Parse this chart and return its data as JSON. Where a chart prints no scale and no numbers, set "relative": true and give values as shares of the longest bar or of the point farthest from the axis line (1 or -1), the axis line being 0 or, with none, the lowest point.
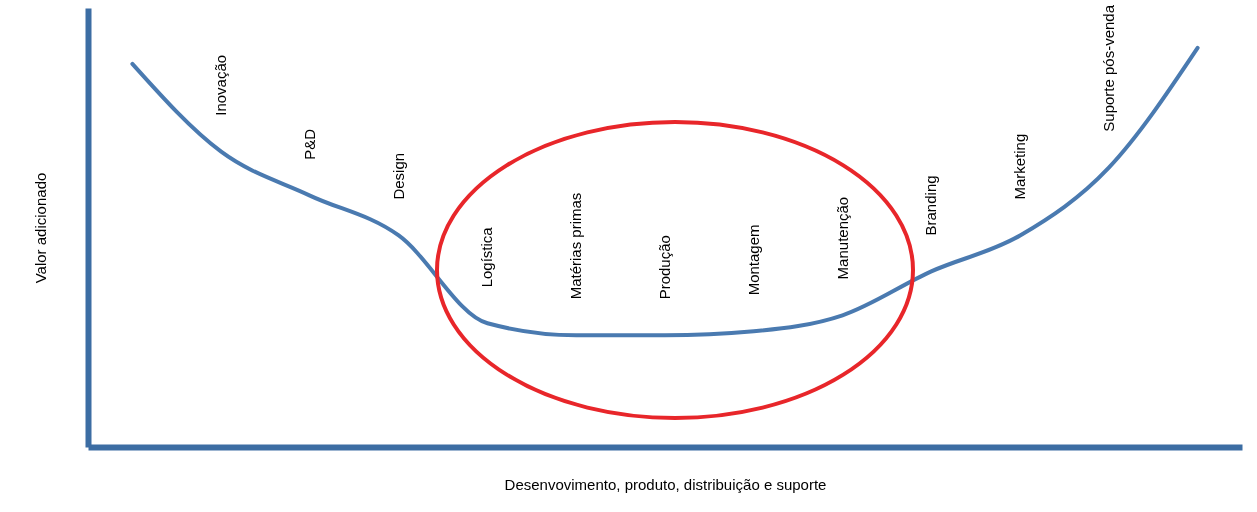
{
  "chart_data": {
    "type": "line",
    "relative": true,
    "color": "#4a7ab0",
    "xlabel": "Desenvovimento, produto, distribuição e suporte",
    "ylabel": "Valor adicionado",
    "categories": [
      null,
      "Inovação",
      "P&D",
      "Design",
      "Logística",
      "Matérias primas",
      "Produção",
      "Montagem",
      "Manutenção",
      "Branding",
      "Marketing",
      "Suporte pós-venda",
      null
    ],
    "values": [
      0.96,
      0.74,
      0.63,
      0.53,
      0.31,
      0.28,
      0.28,
      0.29,
      0.33,
      0.44,
      0.53,
      0.7,
      1
    ]
  }
}
